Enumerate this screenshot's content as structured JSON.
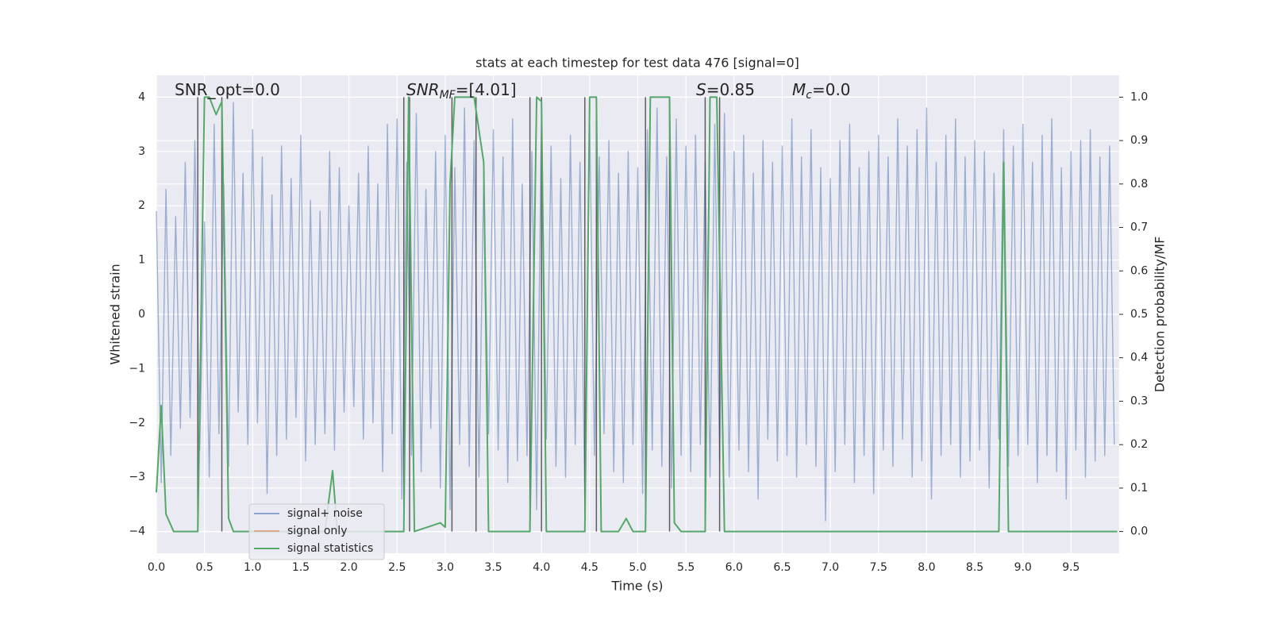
{
  "chart_data": {
    "type": "line",
    "title": "stats at each timestep for test data 476 [signal=0]",
    "xlabel": "Time (s)",
    "ylabel": "Whitened strain",
    "y2label": "Detection probability/MF",
    "xlim": [
      0,
      10
    ],
    "ylim": [
      -4.4,
      4.4
    ],
    "y2lim": [
      -0.05,
      1.05
    ],
    "xticks": [
      {
        "value": 0,
        "label": "0.0"
      },
      {
        "value": 0.5,
        "label": "0.5"
      },
      {
        "value": 1,
        "label": "1.0"
      },
      {
        "value": 1.5,
        "label": "1.5"
      },
      {
        "value": 2,
        "label": "2.0"
      },
      {
        "value": 2.5,
        "label": "2.5"
      },
      {
        "value": 3,
        "label": "3.0"
      },
      {
        "value": 3.5,
        "label": "3.5"
      },
      {
        "value": 4,
        "label": "4.0"
      },
      {
        "value": 4.5,
        "label": "4.5"
      },
      {
        "value": 5,
        "label": "5.0"
      },
      {
        "value": 5.5,
        "label": "5.5"
      },
      {
        "value": 6,
        "label": "6.0"
      },
      {
        "value": 6.5,
        "label": "6.5"
      },
      {
        "value": 7,
        "label": "7.0"
      },
      {
        "value": 7.5,
        "label": "7.5"
      },
      {
        "value": 8,
        "label": "8.0"
      },
      {
        "value": 8.5,
        "label": "8.5"
      },
      {
        "value": 9,
        "label": "9.0"
      },
      {
        "value": 9.5,
        "label": "9.5"
      }
    ],
    "yticks": [
      {
        "value": -4,
        "label": "−4"
      },
      {
        "value": -3,
        "label": "−3"
      },
      {
        "value": -2,
        "label": "−2"
      },
      {
        "value": -1,
        "label": "−1"
      },
      0,
      1,
      2,
      3,
      4
    ],
    "y2ticks": [
      {
        "value": 0,
        "label": "0.0"
      },
      {
        "value": 0.1,
        "label": "0.1"
      },
      {
        "value": 0.2,
        "label": "0.2"
      },
      {
        "value": 0.3,
        "label": "0.3"
      },
      {
        "value": 0.4,
        "label": "0.4"
      },
      {
        "value": 0.5,
        "label": "0.5"
      },
      {
        "value": 0.6,
        "label": "0.6"
      },
      {
        "value": 0.7,
        "label": "0.7"
      },
      {
        "value": 0.8,
        "label": "0.8"
      },
      {
        "value": 0.9,
        "label": "0.9"
      },
      {
        "value": 1,
        "label": "1.0"
      }
    ],
    "grid": true,
    "legend": "lower left",
    "annotations": [
      {
        "main": "SNR_opt=0.0"
      },
      {
        "main": "SNR",
        "sub": "MF",
        "rest": "=[4.01]",
        "italic": true
      },
      {
        "main": "S",
        "rest": "=0.85",
        "italic": true
      },
      {
        "main": "M",
        "sub": "c",
        "rest": "=0.0",
        "italic": true
      }
    ],
    "vlines": {
      "x": [
        0.43,
        0.68,
        2.57,
        2.63,
        3.07,
        3.32,
        3.88,
        4.0,
        4.45,
        4.57,
        5.08,
        5.33,
        5.7,
        5.85
      ],
      "ymin": 0,
      "ymax": 1,
      "color": "#3a3a3a"
    },
    "series": [
      {
        "name": "signal+ noise",
        "color": "#4c72b0",
        "axis": "y",
        "x": [
          0,
          0.05,
          0.1,
          0.15,
          0.2,
          0.25,
          0.3,
          0.35,
          0.4,
          0.45,
          0.5,
          0.55,
          0.6,
          0.65,
          0.7,
          0.75,
          0.8,
          0.85,
          0.9,
          0.95,
          1,
          1.05,
          1.1,
          1.15,
          1.2,
          1.25,
          1.3,
          1.35,
          1.4,
          1.45,
          1.5,
          1.55,
          1.6,
          1.65,
          1.7,
          1.75,
          1.8,
          1.85,
          1.9,
          1.95,
          2,
          2.05,
          2.1,
          2.15,
          2.2,
          2.25,
          2.3,
          2.35,
          2.4,
          2.45,
          2.5,
          2.55,
          2.6,
          2.65,
          2.7,
          2.75,
          2.8,
          2.85,
          2.9,
          2.95,
          3,
          3.05,
          3.1,
          3.15,
          3.2,
          3.25,
          3.3,
          3.35,
          3.4,
          3.45,
          3.5,
          3.55,
          3.6,
          3.65,
          3.7,
          3.75,
          3.8,
          3.85,
          3.9,
          3.95,
          4,
          4.05,
          4.1,
          4.15,
          4.2,
          4.25,
          4.3,
          4.35,
          4.4,
          4.45,
          4.5,
          4.55,
          4.6,
          4.65,
          4.7,
          4.75,
          4.8,
          4.85,
          4.9,
          4.95,
          5,
          5.05,
          5.1,
          5.15,
          5.2,
          5.25,
          5.3,
          5.35,
          5.4,
          5.45,
          5.5,
          5.55,
          5.6,
          5.65,
          5.7,
          5.75,
          5.8,
          5.85,
          5.9,
          5.95,
          6,
          6.05,
          6.1,
          6.15,
          6.2,
          6.25,
          6.3,
          6.35,
          6.4,
          6.45,
          6.5,
          6.55,
          6.6,
          6.65,
          6.7,
          6.75,
          6.8,
          6.85,
          6.9,
          6.95,
          7,
          7.05,
          7.1,
          7.15,
          7.2,
          7.25,
          7.3,
          7.35,
          7.4,
          7.45,
          7.5,
          7.55,
          7.6,
          7.65,
          7.7,
          7.75,
          7.8,
          7.85,
          7.9,
          7.95,
          8,
          8.05,
          8.1,
          8.15,
          8.2,
          8.25,
          8.3,
          8.35,
          8.4,
          8.45,
          8.5,
          8.55,
          8.6,
          8.65,
          8.7,
          8.75,
          8.8,
          8.85,
          8.9,
          8.95,
          9,
          9.05,
          9.1,
          9.15,
          9.2,
          9.25,
          9.3,
          9.35,
          9.4,
          9.45,
          9.5,
          9.55,
          9.6,
          9.65,
          9.7,
          9.75,
          9.8,
          9.85,
          9.9,
          9.95
        ],
        "values": [
          1.9,
          -3.1,
          2.3,
          -2.6,
          1.8,
          -2.1,
          2.8,
          -1.9,
          3.2,
          -2.5,
          1.7,
          -3.0,
          3.5,
          -2.2,
          2.4,
          -2.8,
          3.9,
          -1.8,
          2.6,
          -2.4,
          3.4,
          -2.0,
          2.9,
          -3.3,
          2.2,
          -2.6,
          3.1,
          -2.3,
          2.5,
          -1.9,
          3.3,
          -2.7,
          2.1,
          -2.4,
          1.9,
          -2.2,
          3.0,
          -2.5,
          2.7,
          -1.8,
          2.0,
          -1.7,
          2.6,
          -2.3,
          3.1,
          -2.0,
          2.4,
          -2.9,
          3.5,
          -2.2,
          3.6,
          -3.4,
          2.8,
          -2.6,
          3.7,
          -2.9,
          2.3,
          -2.1,
          3.0,
          -3.2,
          3.3,
          -3.6,
          2.7,
          -2.4,
          3.8,
          -2.8,
          3.2,
          -3.0,
          2.6,
          -2.2,
          3.4,
          -2.5,
          2.9,
          -3.1,
          3.6,
          -2.7,
          2.4,
          -2.6,
          3.0,
          -3.6,
          3.7,
          -2.3,
          3.1,
          -2.8,
          2.5,
          -3.0,
          3.3,
          -2.4,
          2.8,
          -3.5,
          3.5,
          -2.6,
          2.9,
          -2.2,
          3.2,
          -2.9,
          2.6,
          -3.1,
          3.0,
          -2.4,
          2.7,
          -3.3,
          3.4,
          -2.5,
          3.8,
          -2.8,
          2.9,
          -3.2,
          3.6,
          -2.6,
          3.1,
          -2.9,
          3.3,
          -2.4,
          2.8,
          -3.0,
          3.5,
          -2.7,
          3.7,
          -3.0,
          3.0,
          -2.5,
          3.3,
          -2.9,
          2.6,
          -3.4,
          3.2,
          -2.3,
          2.8,
          -2.7,
          3.1,
          -2.6,
          3.6,
          -3.0,
          2.9,
          -2.4,
          3.4,
          -2.8,
          2.7,
          -3.8,
          2.5,
          -2.9,
          3.2,
          -2.4,
          3.5,
          -3.1,
          2.7,
          -2.6,
          3.0,
          -3.3,
          3.3,
          -2.5,
          2.9,
          -2.8,
          3.6,
          -2.3,
          3.1,
          -3.0,
          3.4,
          -2.7,
          3.8,
          -3.4,
          2.8,
          -2.6,
          3.3,
          -2.4,
          3.6,
          -3.0,
          2.9,
          -2.7,
          3.2,
          -2.5,
          3.0,
          -3.2,
          2.6,
          -2.3,
          3.4,
          -2.8,
          3.1,
          -2.6,
          3.5,
          -2.4,
          2.8,
          -3.1,
          3.3,
          -2.6,
          3.6,
          -2.9,
          2.7,
          -3.4,
          3.0,
          -2.5,
          3.2,
          -3.0,
          3.4,
          -2.7,
          2.9,
          -2.6,
          3.1,
          -2.4
        ]
      },
      {
        "name": "signal only",
        "color": "#dd8452",
        "axis": "y"
      },
      {
        "name": "signal statistics",
        "color": "#55a868",
        "axis": "y2",
        "x": [
          0,
          0.05,
          0.1,
          0.18,
          0.43,
          0.5,
          0.55,
          0.62,
          0.68,
          0.75,
          0.8,
          1.75,
          1.83,
          1.88,
          2.57,
          2.62,
          2.68,
          2.95,
          3.0,
          3.05,
          3.1,
          3.3,
          3.4,
          3.45,
          3.88,
          3.95,
          4.0,
          4.05,
          4.45,
          4.5,
          4.57,
          4.62,
          4.8,
          4.88,
          4.95,
          5.08,
          5.13,
          5.33,
          5.38,
          5.45,
          5.7,
          5.75,
          5.82,
          5.9,
          8.75,
          8.8,
          8.85,
          9.98
        ],
        "values": [
          0.09,
          0.29,
          0.04,
          0,
          0,
          1,
          1,
          0.96,
          0.99,
          0.03,
          0,
          0,
          0.14,
          0,
          0,
          1,
          0,
          0.02,
          0.01,
          0.8,
          1,
          1,
          0.85,
          0,
          0,
          1,
          0.99,
          0,
          0,
          1,
          1,
          0,
          0,
          0.03,
          0,
          0,
          1,
          1,
          0.02,
          0,
          0,
          1,
          1,
          0,
          0,
          0.85,
          0,
          0
        ]
      }
    ]
  }
}
